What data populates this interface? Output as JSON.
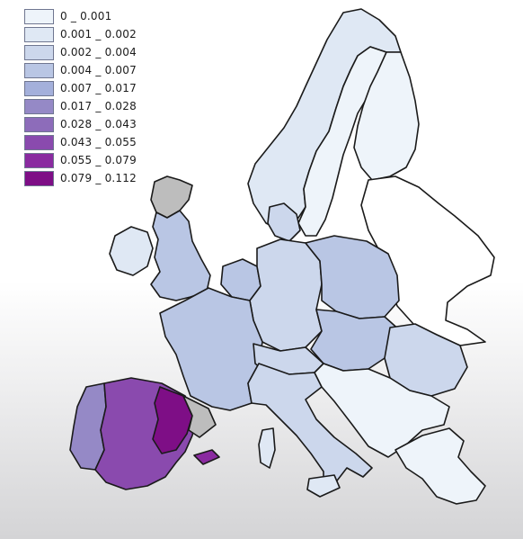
{
  "legend": {
    "items": [
      {
        "label": "0 _ 0.001",
        "color": "#eef4fa"
      },
      {
        "label": "0.001 _ 0.002",
        "color": "#dfe8f4"
      },
      {
        "label": "0.002 _ 0.004",
        "color": "#ccd7ec"
      },
      {
        "label": "0.004 _ 0.007",
        "color": "#b9c6e4"
      },
      {
        "label": "0.007 _ 0.017",
        "color": "#a4b0db"
      },
      {
        "label": "0.017 _ 0.028",
        "color": "#9589c6"
      },
      {
        "label": "0.028 _ 0.043",
        "color": "#8d6cba"
      },
      {
        "label": "0.043 _ 0.055",
        "color": "#8a4aae"
      },
      {
        "label": "0.055 _ 0.079",
        "color": "#8a2aa0"
      },
      {
        "label": "0.079 _ 0.112",
        "color": "#7e0e86"
      }
    ]
  },
  "map": {
    "no_data_color": "#ffffff",
    "no_data_gray": "#bdbdbd",
    "border_color": "#1a1a1a"
  }
}
